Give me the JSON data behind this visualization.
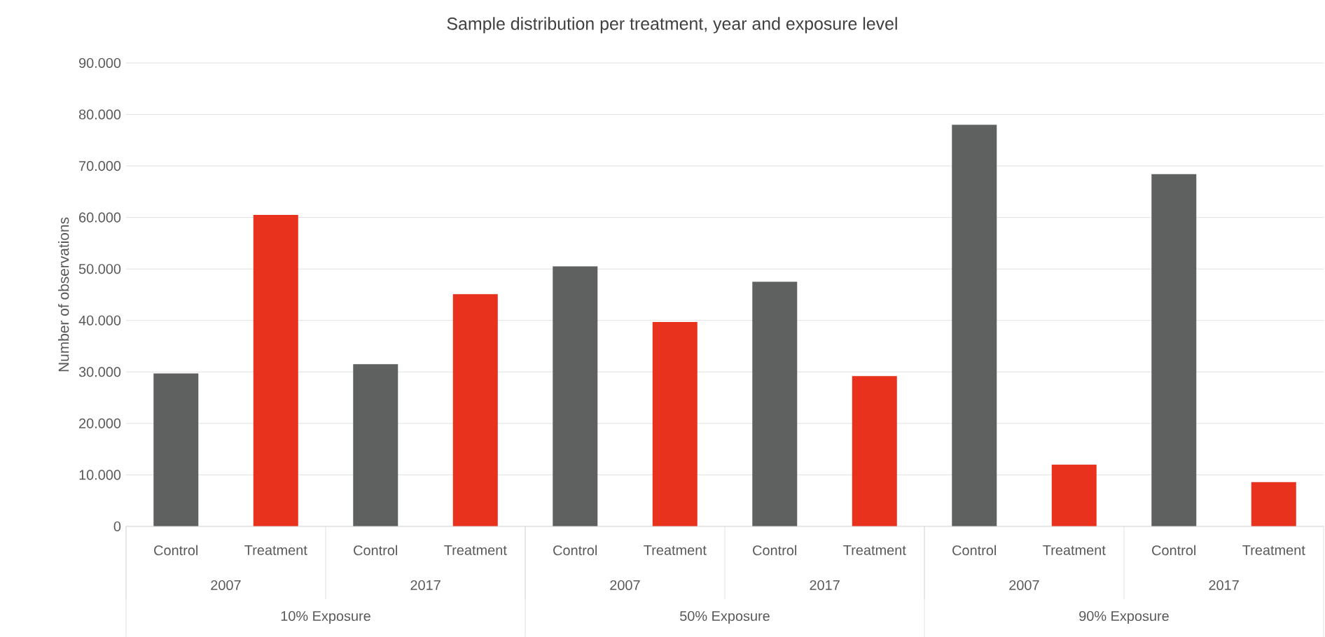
{
  "chart_data": {
    "type": "bar",
    "title": "Sample distribution per treatment, year and exposure level",
    "ylabel": "Number of observations",
    "categories": [
      "Control",
      "Treatment",
      "Control",
      "Treatment",
      "Control",
      "Treatment",
      "Control",
      "Treatment",
      "Control",
      "Treatment",
      "Control",
      "Treatment"
    ],
    "values": [
      29700,
      60500,
      31500,
      45100,
      50500,
      39700,
      47500,
      29200,
      78000,
      12000,
      68400,
      8600
    ],
    "colors": [
      "#5f6060",
      "#e8321e",
      "#5f6060",
      "#e8321e",
      "#5f6060",
      "#e8321e",
      "#5f6060",
      "#e8321e",
      "#5f6060",
      "#e8321e",
      "#5f6060",
      "#e8321e"
    ],
    "annotations": [
      "2007",
      "2017",
      "2007",
      "2017",
      "2007",
      "2017",
      "10% Exposure",
      "50% Exposure",
      "90% Exposure"
    ],
    "ylim": [
      0,
      90000
    ],
    "yticks": [
      {
        "value": 0,
        "label": "0"
      },
      {
        "value": 10000,
        "label": "10.000"
      },
      {
        "value": 20000,
        "label": "20.000"
      },
      {
        "value": 30000,
        "label": "30.000"
      },
      {
        "value": 40000,
        "label": "40.000"
      },
      {
        "value": 50000,
        "label": "50.000"
      },
      {
        "value": 60000,
        "label": "60.000"
      },
      {
        "value": 70000,
        "label": "70.000"
      },
      {
        "value": 80000,
        "label": "80.000"
      },
      {
        "value": 90000,
        "label": "90.000"
      }
    ],
    "grid": "y"
  }
}
